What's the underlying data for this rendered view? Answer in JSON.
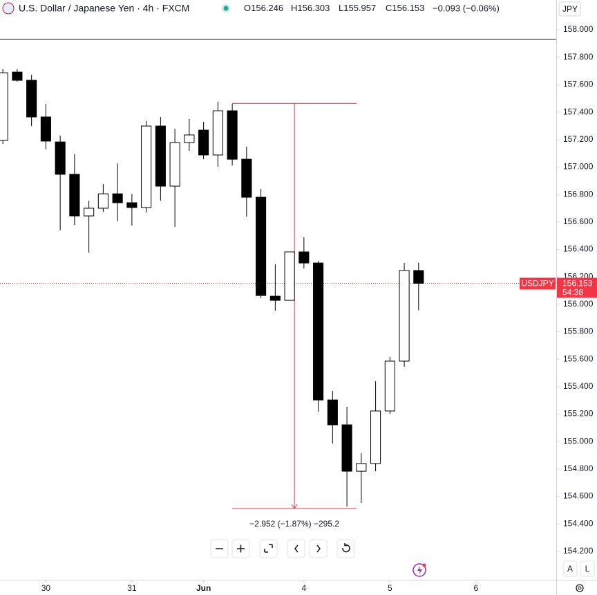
{
  "chart_data": {
    "type": "candlestick",
    "title": "U.S. Dollar / Japanese Yen · 4h · FXCM",
    "legend_ohlc": [
      {
        "label": "O",
        "value": 156.246
      },
      {
        "label": "H",
        "value": 156.303
      },
      {
        "label": "L",
        "value": 155.957
      },
      {
        "label": "C",
        "value": 156.153
      }
    ],
    "change": "−0.093 (−0.06%)",
    "open": [
      157.194,
      157.692,
      157.632,
      157.365,
      157.183,
      156.947,
      156.644,
      156.7,
      156.805,
      156.74,
      156.705,
      157.299,
      156.861,
      157.178,
      157.269,
      157.088,
      157.41,
      157.057,
      156.78,
      156.059,
      156.029,
      156.382,
      156.301,
      155.303,
      155.122,
      154.784,
      154.84,
      155.223,
      155.586,
      156.246
    ],
    "high": [
      157.713,
      157.713,
      157.672,
      157.461,
      157.229,
      157.093,
      156.755,
      156.876,
      157.027,
      156.805,
      157.335,
      157.365,
      157.279,
      157.35,
      157.33,
      157.476,
      157.461,
      157.148,
      156.841,
      156.291,
      156.382,
      156.488,
      156.317,
      155.369,
      155.253,
      154.915,
      155.439,
      155.616,
      156.301,
      156.303
    ],
    "low": [
      157.168,
      157.622,
      157.299,
      157.128,
      156.538,
      156.579,
      156.377,
      156.674,
      156.604,
      156.574,
      156.669,
      156.755,
      156.564,
      157.118,
      157.057,
      157.002,
      157.012,
      156.639,
      156.044,
      155.954,
      156.029,
      156.261,
      155.218,
      154.986,
      154.527,
      154.552,
      154.784,
      155.203,
      155.545,
      155.957
    ],
    "close": [
      157.687,
      157.632,
      157.365,
      157.189,
      156.947,
      156.644,
      156.7,
      156.805,
      156.74,
      156.705,
      157.299,
      156.861,
      157.178,
      157.234,
      157.088,
      157.41,
      157.057,
      156.78,
      156.064,
      156.029,
      156.382,
      156.301,
      155.303,
      155.122,
      154.784,
      154.84,
      155.223,
      155.586,
      156.246,
      156.153
    ],
    "up_color": "#ffffff",
    "down_color": "#000000",
    "ylim": [
      153.993,
      158.217
    ],
    "yticks": [
      {
        "value": 158.0,
        "label": "158.000"
      },
      {
        "value": 157.8,
        "label": "157.800"
      },
      {
        "value": 157.6,
        "label": "157.600"
      },
      {
        "value": 157.4,
        "label": "157.400"
      },
      {
        "value": 157.2,
        "label": "157.200"
      },
      {
        "value": 157.0,
        "label": "157.000"
      },
      {
        "value": 156.8,
        "label": "156.800"
      },
      {
        "value": 156.6,
        "label": "156.600"
      },
      {
        "value": 156.4,
        "label": "156.400"
      },
      {
        "value": 156.2,
        "label": "156.200"
      },
      {
        "value": 156.0,
        "label": "156.000"
      },
      {
        "value": 155.8,
        "label": "155.800"
      },
      {
        "value": 155.6,
        "label": "155.600"
      },
      {
        "value": 155.4,
        "label": "155.400"
      },
      {
        "value": 155.2,
        "label": "155.200"
      },
      {
        "value": 155.0,
        "label": "155.000"
      },
      {
        "value": 154.8,
        "label": "154.800"
      },
      {
        "value": 154.6,
        "label": "154.600"
      },
      {
        "value": 154.4,
        "label": "154.400"
      },
      {
        "value": 154.2,
        "label": "154.200"
      }
    ],
    "xlim": [
      -0.2,
      38.6
    ],
    "xticks": [
      {
        "value": 3,
        "label": "30"
      },
      {
        "value": 9,
        "label": "31"
      },
      {
        "value": 14,
        "label": "Jun"
      },
      {
        "value": 21,
        "label": "4"
      },
      {
        "value": 27,
        "label": "5"
      },
      {
        "value": 33,
        "label": "6"
      }
    ],
    "last_price": {
      "symbol": "USDJPY",
      "value": 156.153,
      "countdown": "54:38",
      "color": "#f23645"
    },
    "measure": {
      "from": 157.464,
      "to": 154.512,
      "start": 16,
      "end": 24,
      "label": "−2.952 (−1.87%) −295.2",
      "color": "#f23645"
    },
    "currency": "JPY",
    "scale_buttons": [
      "A",
      "L"
    ]
  }
}
